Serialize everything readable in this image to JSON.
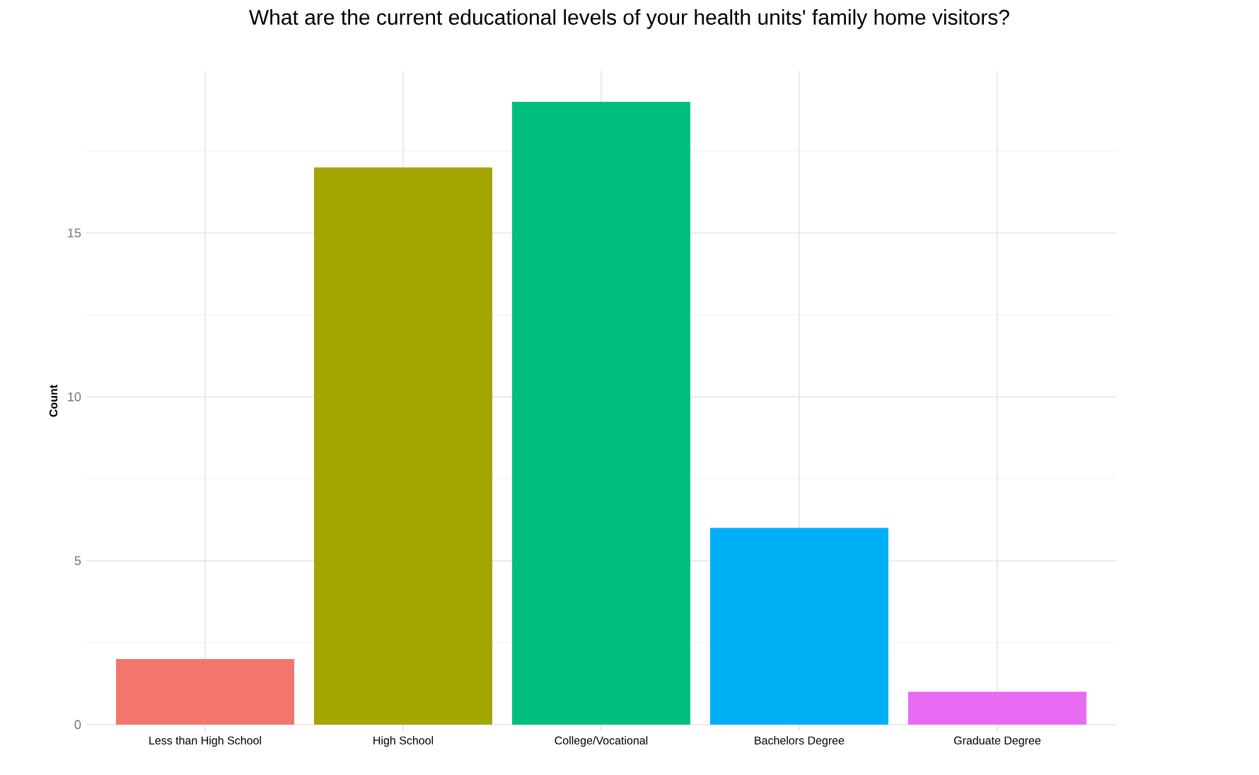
{
  "chart_data": {
    "type": "bar",
    "title": "What are the current educational levels of your health units' family home visitors?",
    "ylabel": "Count",
    "categories": [
      "Less than High School",
      "High School",
      "College/Vocational",
      "Bachelors Degree",
      "Graduate Degree"
    ],
    "values": [
      2,
      17,
      19,
      6,
      1
    ],
    "colors": [
      "#f3766d",
      "#a3a500",
      "#00bf7d",
      "#00b0f6",
      "#e76bf3"
    ],
    "ylim": [
      -0.2,
      19.95
    ],
    "yticks": [
      0,
      5,
      10,
      15
    ],
    "grid": true
  }
}
